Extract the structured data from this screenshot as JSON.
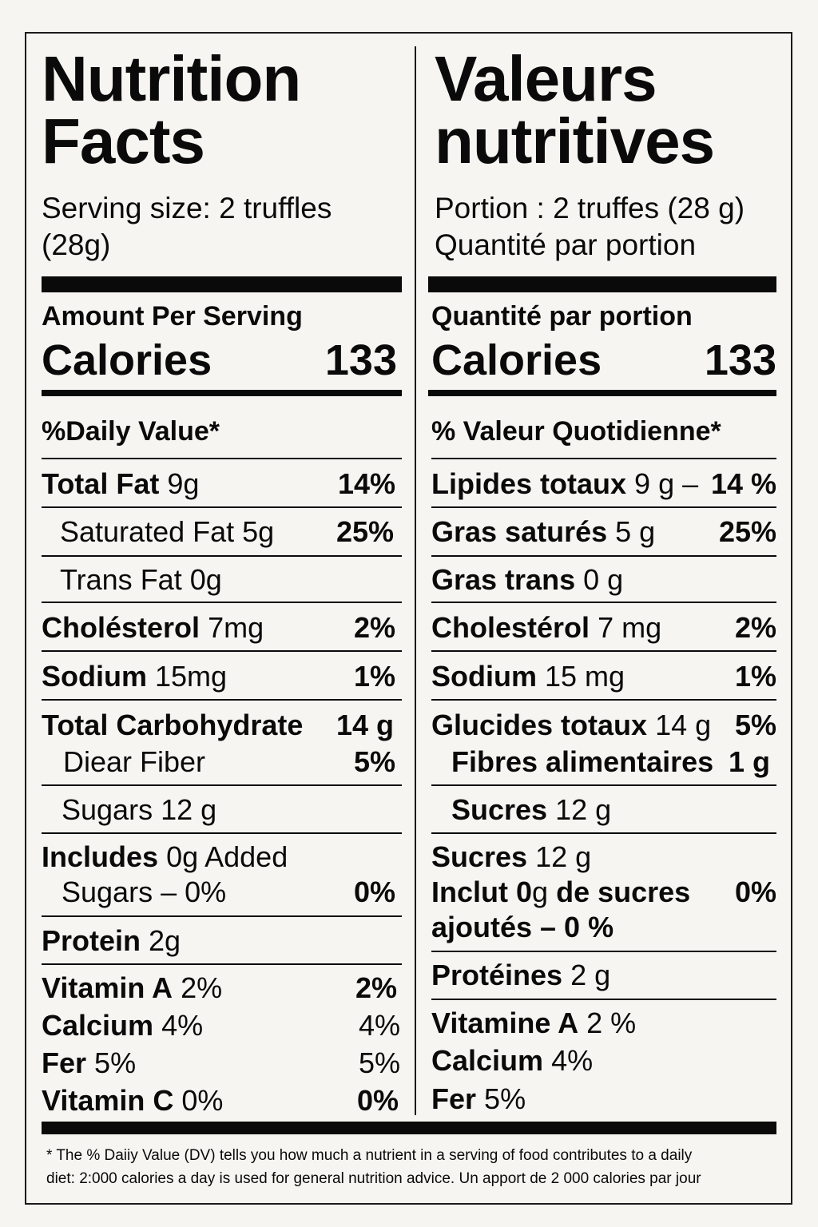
{
  "english": {
    "title_line1": "Nutrition",
    "title_line2": "Facts",
    "serving_line1": "Serving size: 2 truffles",
    "serving_line2": "(28g)",
    "amount_per_serving": "Amount Per Serving",
    "calories_label": "Calories",
    "calories_value": "133",
    "daily_value_header": "%Daily Value*",
    "total_fat": {
      "name": "Total Fat",
      "amount": "9g",
      "dv": "14%"
    },
    "saturated_fat": {
      "name": "Saturated Fat 5g",
      "dv": "25%"
    },
    "trans_fat": {
      "name": "Trans Fat 0g"
    },
    "cholesterol": {
      "name": "Cholésterol",
      "amount": "7mg",
      "dv": "2%"
    },
    "sodium": {
      "name": "Sodium",
      "amount": "15mg",
      "dv": "1%"
    },
    "total_carbohydrate": {
      "name": "Total Carbohydrate",
      "amount": "14 g"
    },
    "dietary_fiber": {
      "name": "Diear Fiber",
      "dv": "5%"
    },
    "sugars": {
      "name": "Sugars 12 g"
    },
    "includes_added_sugars": {
      "name": "Includes",
      "amount": "0g Added",
      "line2": "Sugars – 0%",
      "dv": "0%"
    },
    "protein": {
      "name": "Protein",
      "amount": "2g"
    },
    "vitamin_a": {
      "name": "Vitamin A",
      "amount": "2%",
      "dv": "2%"
    },
    "calcium": {
      "name": "Calcium",
      "amount": "4%",
      "dv": "4%"
    },
    "iron": {
      "name": "Fer",
      "amount": "5%",
      "dv": "5%"
    },
    "vitamin_c": {
      "name": "Vitamin C",
      "amount": "0%",
      "dv": "0%"
    }
  },
  "french": {
    "title_line1": "Valeurs",
    "title_line2": "nutritives",
    "serving_line1": "Portion : 2 truffes (28 g)",
    "serving_line2": "Quantité par portion",
    "amount_per_serving": "Quantité par portion",
    "calories_label": "Calories",
    "calories_value": "133",
    "daily_value_header": "% Valeur Quotidienne*",
    "lipides": {
      "name": "Lipides totaux",
      "amount": "9 g –",
      "dv": "14 %"
    },
    "gras_satures": {
      "name": "Gras saturés",
      "amount": "5 g",
      "dv": "25%"
    },
    "gras_trans": {
      "name": "Gras trans",
      "amount": "0 g"
    },
    "cholesterol": {
      "name": "Cholestérol",
      "amount": "7 mg",
      "dv": "2%"
    },
    "sodium": {
      "name": "Sodium",
      "amount": "15 mg",
      "dv": "1%"
    },
    "glucides": {
      "name": "Glucides totaux",
      "amount": "14 g",
      "dv": "5%"
    },
    "fibres": {
      "name": "Fibres alimentaires",
      "amount": "1 g"
    },
    "sucres": {
      "name": "Sucres",
      "amount": "12 g"
    },
    "sucres2": {
      "name": "Sucres",
      "amount": "12 g"
    },
    "inclut": {
      "name": "Inclut",
      "amount_bold": "0",
      "amount": "g",
      "name2": "de sucres",
      "line2": "ajoutés – 0 %",
      "dv": "0%"
    },
    "proteines": {
      "name": "Protéines",
      "amount": "2 g"
    },
    "vitamine_a": {
      "name": "Vitamine A",
      "amount": "2 %"
    },
    "calcium": {
      "name": "Calcium",
      "amount": "4%"
    },
    "fer": {
      "name": "Fer",
      "amount": "5%"
    }
  },
  "footnote": {
    "line1": "* The % Daiiy Value (DV) tells you how much a nutrient in a serving of food contributes to a daily",
    "line2": "diet: 2:000 calories a day is used for general nutrition advice. Un apport de 2 000 calories par jour"
  }
}
